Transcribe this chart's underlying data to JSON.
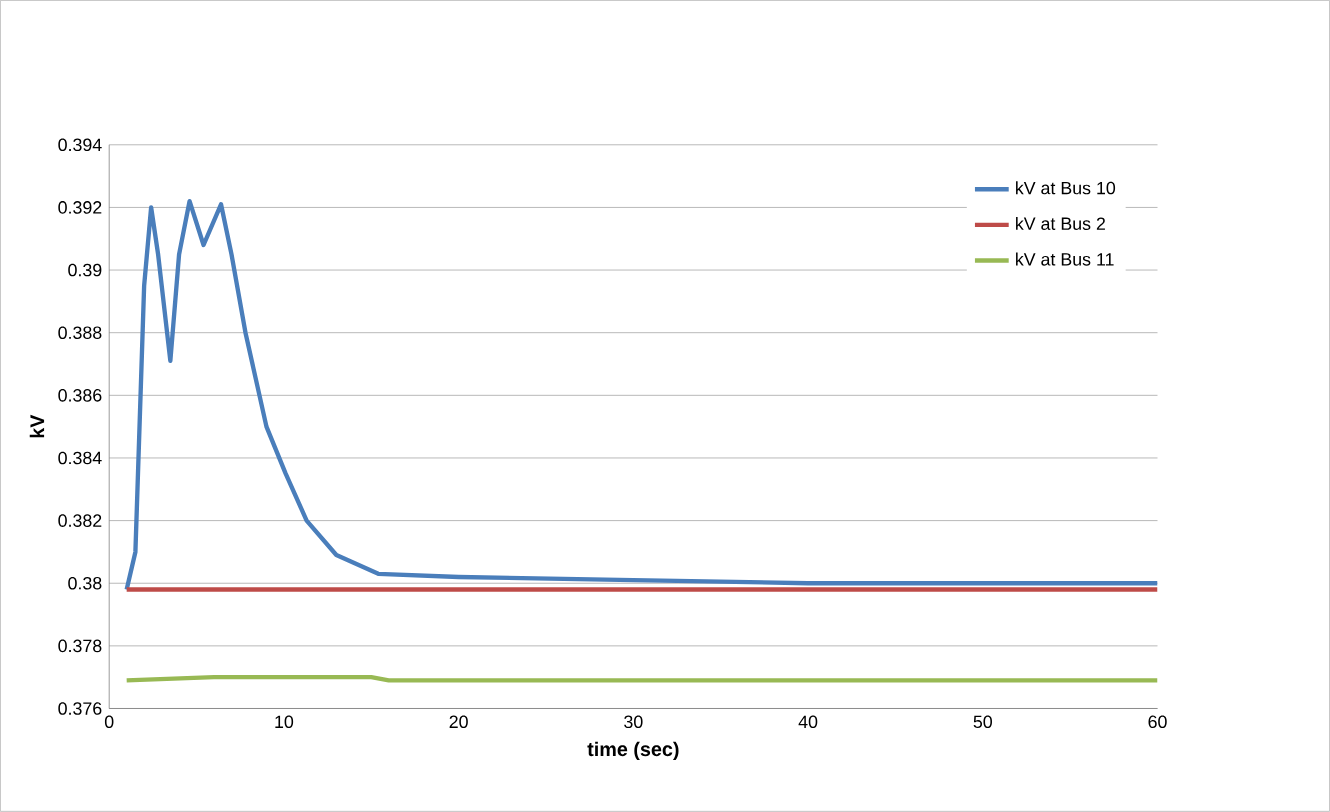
{
  "chart_data": {
    "type": "line",
    "xlabel": "time (sec)",
    "ylabel": "kV",
    "xlim": [
      0,
      60
    ],
    "ylim": [
      0.376,
      0.394
    ],
    "xticks": [
      0,
      10,
      20,
      30,
      40,
      50,
      60
    ],
    "yticks": [
      0.376,
      0.378,
      0.38,
      0.382,
      0.384,
      0.386,
      0.388,
      0.39,
      0.392,
      0.394
    ],
    "grid": "y",
    "legend": "top right",
    "marker": "none",
    "line_style": "solid",
    "series": [
      {
        "name": "kV at Bus 10",
        "color": "#4a7ebb",
        "x": [
          1,
          1.5,
          2,
          2.4,
          2.8,
          3.5,
          4,
          4.6,
          5.4,
          6.4,
          7,
          7.8,
          9,
          10.1,
          11.3,
          13,
          15.4,
          20,
          30,
          40,
          60
        ],
        "values": [
          0.3798,
          0.381,
          0.3895,
          0.392,
          0.3905,
          0.3871,
          0.3905,
          0.3922,
          0.3908,
          0.3921,
          0.3905,
          0.388,
          0.385,
          0.3835,
          0.382,
          0.3809,
          0.3803,
          0.3802,
          0.3801,
          0.38,
          0.38
        ]
      },
      {
        "name": "kV at Bus 2",
        "color": "#be4b48",
        "x": [
          1,
          60
        ],
        "values": [
          0.3798,
          0.3798
        ]
      },
      {
        "name": "kV at Bus 11",
        "color": "#98b954",
        "x": [
          1,
          6,
          15,
          16,
          60
        ],
        "values": [
          0.3769,
          0.377,
          0.377,
          0.3769,
          0.3769
        ]
      }
    ]
  }
}
